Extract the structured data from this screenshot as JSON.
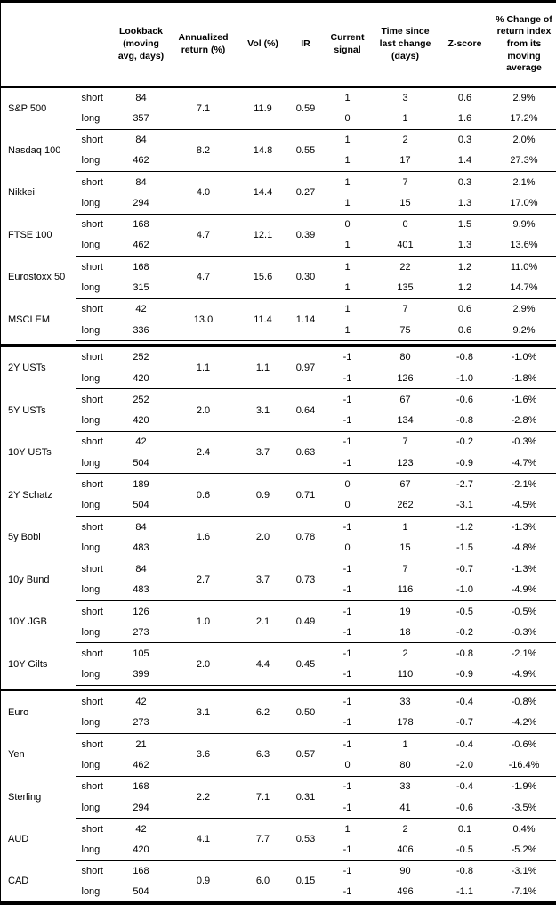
{
  "table": {
    "headers": {
      "name": "",
      "horizon": "",
      "lookback": "Lookback\n(moving\navg, days)",
      "annualized": "Annualized\nreturn (%)",
      "vol": "Vol (%)",
      "ir": "IR",
      "signal": "Current\nsignal",
      "time_since": "Time since\nlast change\n(days)",
      "zscore": "Z-score",
      "pct_change": "% Change of\nreturn index\nfrom its\nmoving\naverage"
    },
    "sections": [
      {
        "instruments": [
          {
            "name": "S&P 500",
            "annualized": "7.1",
            "vol": "11.9",
            "ir": "0.59",
            "rows": [
              {
                "horizon": "short",
                "lookback": "84",
                "signal": "1",
                "time": "3",
                "z": "0.6",
                "chg": "2.9%"
              },
              {
                "horizon": "long",
                "lookback": "357",
                "signal": "0",
                "time": "1",
                "z": "1.6",
                "chg": "17.2%"
              }
            ]
          },
          {
            "name": "Nasdaq 100",
            "annualized": "8.2",
            "vol": "14.8",
            "ir": "0.55",
            "rows": [
              {
                "horizon": "short",
                "lookback": "84",
                "signal": "1",
                "time": "2",
                "z": "0.3",
                "chg": "2.0%"
              },
              {
                "horizon": "long",
                "lookback": "462",
                "signal": "1",
                "time": "17",
                "z": "1.4",
                "chg": "27.3%"
              }
            ]
          },
          {
            "name": "Nikkei",
            "annualized": "4.0",
            "vol": "14.4",
            "ir": "0.27",
            "rows": [
              {
                "horizon": "short",
                "lookback": "84",
                "signal": "1",
                "time": "7",
                "z": "0.3",
                "chg": "2.1%"
              },
              {
                "horizon": "long",
                "lookback": "294",
                "signal": "1",
                "time": "15",
                "z": "1.3",
                "chg": "17.0%"
              }
            ]
          },
          {
            "name": "FTSE 100",
            "annualized": "4.7",
            "vol": "12.1",
            "ir": "0.39",
            "rows": [
              {
                "horizon": "short",
                "lookback": "168",
                "signal": "0",
                "time": "0",
                "z": "1.5",
                "chg": "9.9%"
              },
              {
                "horizon": "long",
                "lookback": "462",
                "signal": "1",
                "time": "401",
                "z": "1.3",
                "chg": "13.6%"
              }
            ]
          },
          {
            "name": "Eurostoxx 50",
            "annualized": "4.7",
            "vol": "15.6",
            "ir": "0.30",
            "rows": [
              {
                "horizon": "short",
                "lookback": "168",
                "signal": "1",
                "time": "22",
                "z": "1.2",
                "chg": "11.0%"
              },
              {
                "horizon": "long",
                "lookback": "315",
                "signal": "1",
                "time": "135",
                "z": "1.2",
                "chg": "14.7%"
              }
            ]
          },
          {
            "name": "MSCI EM",
            "annualized": "13.0",
            "vol": "11.4",
            "ir": "1.14",
            "rows": [
              {
                "horizon": "short",
                "lookback": "42",
                "signal": "1",
                "time": "7",
                "z": "0.6",
                "chg": "2.9%"
              },
              {
                "horizon": "long",
                "lookback": "336",
                "signal": "1",
                "time": "75",
                "z": "0.6",
                "chg": "9.2%"
              }
            ]
          }
        ]
      },
      {
        "instruments": [
          {
            "name": "2Y USTs",
            "annualized": "1.1",
            "vol": "1.1",
            "ir": "0.97",
            "rows": [
              {
                "horizon": "short",
                "lookback": "252",
                "signal": "-1",
                "time": "80",
                "z": "-0.8",
                "chg": "-1.0%"
              },
              {
                "horizon": "long",
                "lookback": "420",
                "signal": "-1",
                "time": "126",
                "z": "-1.0",
                "chg": "-1.8%"
              }
            ]
          },
          {
            "name": "5Y USTs",
            "annualized": "2.0",
            "vol": "3.1",
            "ir": "0.64",
            "rows": [
              {
                "horizon": "short",
                "lookback": "252",
                "signal": "-1",
                "time": "67",
                "z": "-0.6",
                "chg": "-1.6%"
              },
              {
                "horizon": "long",
                "lookback": "420",
                "signal": "-1",
                "time": "134",
                "z": "-0.8",
                "chg": "-2.8%"
              }
            ]
          },
          {
            "name": "10Y USTs",
            "annualized": "2.4",
            "vol": "3.7",
            "ir": "0.63",
            "rows": [
              {
                "horizon": "short",
                "lookback": "42",
                "signal": "-1",
                "time": "7",
                "z": "-0.2",
                "chg": "-0.3%"
              },
              {
                "horizon": "long",
                "lookback": "504",
                "signal": "-1",
                "time": "123",
                "z": "-0.9",
                "chg": "-4.7%"
              }
            ]
          },
          {
            "name": "2Y Schatz",
            "annualized": "0.6",
            "vol": "0.9",
            "ir": "0.71",
            "rows": [
              {
                "horizon": "short",
                "lookback": "189",
                "signal": "0",
                "time": "67",
                "z": "-2.7",
                "chg": "-2.1%"
              },
              {
                "horizon": "long",
                "lookback": "504",
                "signal": "0",
                "time": "262",
                "z": "-3.1",
                "chg": "-4.5%"
              }
            ]
          },
          {
            "name": "5y Bobl",
            "annualized": "1.6",
            "vol": "2.0",
            "ir": "0.78",
            "rows": [
              {
                "horizon": "short",
                "lookback": "84",
                "signal": "-1",
                "time": "1",
                "z": "-1.2",
                "chg": "-1.3%"
              },
              {
                "horizon": "long",
                "lookback": "483",
                "signal": "0",
                "time": "15",
                "z": "-1.5",
                "chg": "-4.8%"
              }
            ]
          },
          {
            "name": "10y Bund",
            "annualized": "2.7",
            "vol": "3.7",
            "ir": "0.73",
            "rows": [
              {
                "horizon": "short",
                "lookback": "84",
                "signal": "-1",
                "time": "7",
                "z": "-0.7",
                "chg": "-1.3%"
              },
              {
                "horizon": "long",
                "lookback": "483",
                "signal": "-1",
                "time": "116",
                "z": "-1.0",
                "chg": "-4.9%"
              }
            ]
          },
          {
            "name": "10Y JGB",
            "annualized": "1.0",
            "vol": "2.1",
            "ir": "0.49",
            "rows": [
              {
                "horizon": "short",
                "lookback": "126",
                "signal": "-1",
                "time": "19",
                "z": "-0.5",
                "chg": "-0.5%"
              },
              {
                "horizon": "long",
                "lookback": "273",
                "signal": "-1",
                "time": "18",
                "z": "-0.2",
                "chg": "-0.3%"
              }
            ]
          },
          {
            "name": "10Y Gilts",
            "annualized": "2.0",
            "vol": "4.4",
            "ir": "0.45",
            "rows": [
              {
                "horizon": "short",
                "lookback": "105",
                "signal": "-1",
                "time": "2",
                "z": "-0.8",
                "chg": "-2.1%"
              },
              {
                "horizon": "long",
                "lookback": "399",
                "signal": "-1",
                "time": "110",
                "z": "-0.9",
                "chg": "-4.9%"
              }
            ]
          }
        ]
      },
      {
        "instruments": [
          {
            "name": "Euro",
            "annualized": "3.1",
            "vol": "6.2",
            "ir": "0.50",
            "rows": [
              {
                "horizon": "short",
                "lookback": "42",
                "signal": "-1",
                "time": "33",
                "z": "-0.4",
                "chg": "-0.8%"
              },
              {
                "horizon": "long",
                "lookback": "273",
                "signal": "-1",
                "time": "178",
                "z": "-0.7",
                "chg": "-4.2%"
              }
            ]
          },
          {
            "name": "Yen",
            "annualized": "3.6",
            "vol": "6.3",
            "ir": "0.57",
            "rows": [
              {
                "horizon": "short",
                "lookback": "21",
                "signal": "-1",
                "time": "1",
                "z": "-0.4",
                "chg": "-0.6%"
              },
              {
                "horizon": "long",
                "lookback": "462",
                "signal": "0",
                "time": "80",
                "z": "-2.0",
                "chg": "-16.4%"
              }
            ]
          },
          {
            "name": "Sterling",
            "annualized": "2.2",
            "vol": "7.1",
            "ir": "0.31",
            "rows": [
              {
                "horizon": "short",
                "lookback": "168",
                "signal": "-1",
                "time": "33",
                "z": "-0.4",
                "chg": "-1.9%"
              },
              {
                "horizon": "long",
                "lookback": "294",
                "signal": "-1",
                "time": "41",
                "z": "-0.6",
                "chg": "-3.5%"
              }
            ]
          },
          {
            "name": "AUD",
            "annualized": "4.1",
            "vol": "7.7",
            "ir": "0.53",
            "rows": [
              {
                "horizon": "short",
                "lookback": "42",
                "signal": "1",
                "time": "2",
                "z": "0.1",
                "chg": "0.4%"
              },
              {
                "horizon": "long",
                "lookback": "420",
                "signal": "-1",
                "time": "406",
                "z": "-0.5",
                "chg": "-5.2%"
              }
            ]
          },
          {
            "name": "CAD",
            "annualized": "0.9",
            "vol": "6.0",
            "ir": "0.15",
            "rows": [
              {
                "horizon": "short",
                "lookback": "168",
                "signal": "-1",
                "time": "90",
                "z": "-0.8",
                "chg": "-3.1%"
              },
              {
                "horizon": "long",
                "lookback": "504",
                "signal": "-1",
                "time": "496",
                "z": "-1.1",
                "chg": "-7.1%"
              }
            ]
          }
        ]
      }
    ]
  }
}
